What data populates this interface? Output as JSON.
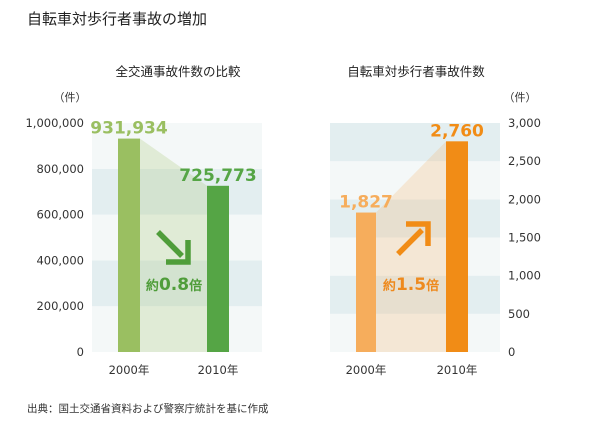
{
  "title": "自転車対歩行者事故の増加",
  "source": "出典：国土交通省資料および警察庁統計を基に作成",
  "colors": {
    "band_light": "#f4f8f8",
    "band_dark": "#e3eef0",
    "green_light": "#9abf61",
    "green_dark": "#55a545",
    "green_text": "#4f9d3a",
    "orange_light": "#f6ad5c",
    "orange_dark": "#f18c16",
    "orange_text": "#ee8a1e",
    "arrow_green": "#4f9d3a",
    "arrow_orange": "#f18c16"
  },
  "chart_data": [
    {
      "type": "bar",
      "title": "全交通事故件数の比較",
      "unit": "（件）",
      "categories": [
        "2000年",
        "2010年"
      ],
      "values": [
        931934,
        725773
      ],
      "value_labels": [
        "931,934",
        "725,773"
      ],
      "ylim": [
        0,
        1000000
      ],
      "yticks": [
        0,
        200000,
        400000,
        600000,
        800000,
        1000000
      ],
      "ytick_labels": [
        "0",
        "200,000",
        "400,000",
        "600,000",
        "800,000",
        "1,000,000"
      ],
      "axis_side": "left",
      "ratio_prefix": "約",
      "ratio_value": "0.8",
      "ratio_suffix": "倍",
      "trend": "down",
      "arrow_icon": "arrow-down-right-icon",
      "grid": false
    },
    {
      "type": "bar",
      "title": "自転車対歩行者事故件数",
      "unit": "（件）",
      "categories": [
        "2000年",
        "2010年"
      ],
      "values": [
        1827,
        2760
      ],
      "value_labels": [
        "1,827",
        "2,760"
      ],
      "ylim": [
        0,
        3000
      ],
      "yticks": [
        0,
        500,
        1000,
        1500,
        2000,
        2500,
        3000
      ],
      "ytick_labels": [
        "0",
        "500",
        "1,000",
        "1,500",
        "2,000",
        "2,500",
        "3,000"
      ],
      "axis_side": "right",
      "ratio_prefix": "約",
      "ratio_value": "1.5",
      "ratio_suffix": "倍",
      "trend": "up",
      "arrow_icon": "arrow-up-right-icon",
      "grid": false
    }
  ]
}
